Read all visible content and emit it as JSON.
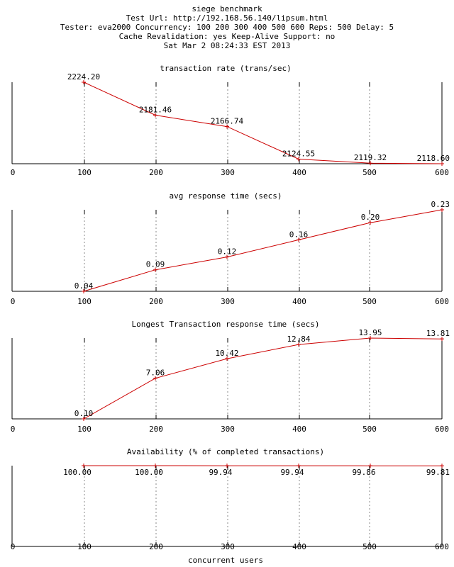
{
  "header": {
    "lines": [
      "siege benchmark",
      "Test Url: http://192.168.56.140/lipsum.html",
      "Tester: eva2000 Concurrency: 100 200 300 400 500 600 Reps: 500 Delay: 5",
      "Cache Revalidation: yes Keep-Alive Support: no",
      "Sat Mar  2 08:24:33 EST 2013"
    ]
  },
  "xlabel": "concurrent users",
  "colors": {
    "series": "#cc0000",
    "axis": "#000000",
    "grid": "#888888"
  },
  "chart_data": [
    {
      "type": "line",
      "title": "transaction rate (trans/sec)",
      "x": [
        100,
        200,
        300,
        400,
        500,
        600
      ],
      "values": [
        2224.2,
        2181.46,
        2166.74,
        2124.55,
        2119.32,
        2118.6
      ],
      "labels": [
        "2224.20",
        "2181.46",
        "2166.74",
        "2124.55",
        "2119.32",
        "2118.60"
      ],
      "xlim": [
        0,
        600
      ],
      "ylim": [
        2118.6,
        2224.2
      ],
      "xticks": [
        "0",
        "100",
        "200",
        "300",
        "400",
        "500",
        "600"
      ],
      "grid": "vertical dashed"
    },
    {
      "type": "line",
      "title": "avg response time (secs)",
      "x": [
        100,
        200,
        300,
        400,
        500,
        600
      ],
      "values": [
        0.04,
        0.09,
        0.12,
        0.16,
        0.2,
        0.23
      ],
      "labels": [
        "0.04",
        "0.09",
        "0.12",
        "0.16",
        "0.20",
        "0.23"
      ],
      "xlim": [
        0,
        600
      ],
      "ylim": [
        0.04,
        0.23
      ],
      "xticks": [
        "0",
        "100",
        "200",
        "300",
        "400",
        "500",
        "600"
      ],
      "grid": "vertical dashed"
    },
    {
      "type": "line",
      "title": "Longest Transaction response time (secs)",
      "x": [
        100,
        200,
        300,
        400,
        500,
        600
      ],
      "values": [
        0.1,
        7.06,
        10.42,
        12.84,
        13.95,
        13.81
      ],
      "labels": [
        "0.10",
        "7.06",
        "10.42",
        "12.84",
        "13.95",
        "13.81"
      ],
      "xlim": [
        0,
        600
      ],
      "ylim": [
        0.1,
        13.95
      ],
      "xticks": [
        "0",
        "100",
        "200",
        "300",
        "400",
        "500",
        "600"
      ],
      "grid": "vertical dashed"
    },
    {
      "type": "line",
      "title": "Availability (% of completed transactions)",
      "x": [
        100,
        200,
        300,
        400,
        500,
        600
      ],
      "values": [
        100.0,
        100.0,
        99.94,
        99.94,
        99.86,
        99.81
      ],
      "labels": [
        "100.00",
        "100.00",
        "99.94",
        "99.94",
        "99.86",
        "99.81"
      ],
      "xlim": [
        0,
        600
      ],
      "ylim": [
        0,
        100
      ],
      "xticks": [
        "0",
        "100",
        "200",
        "300",
        "400",
        "500",
        "600"
      ],
      "grid": "vertical dashed"
    }
  ]
}
